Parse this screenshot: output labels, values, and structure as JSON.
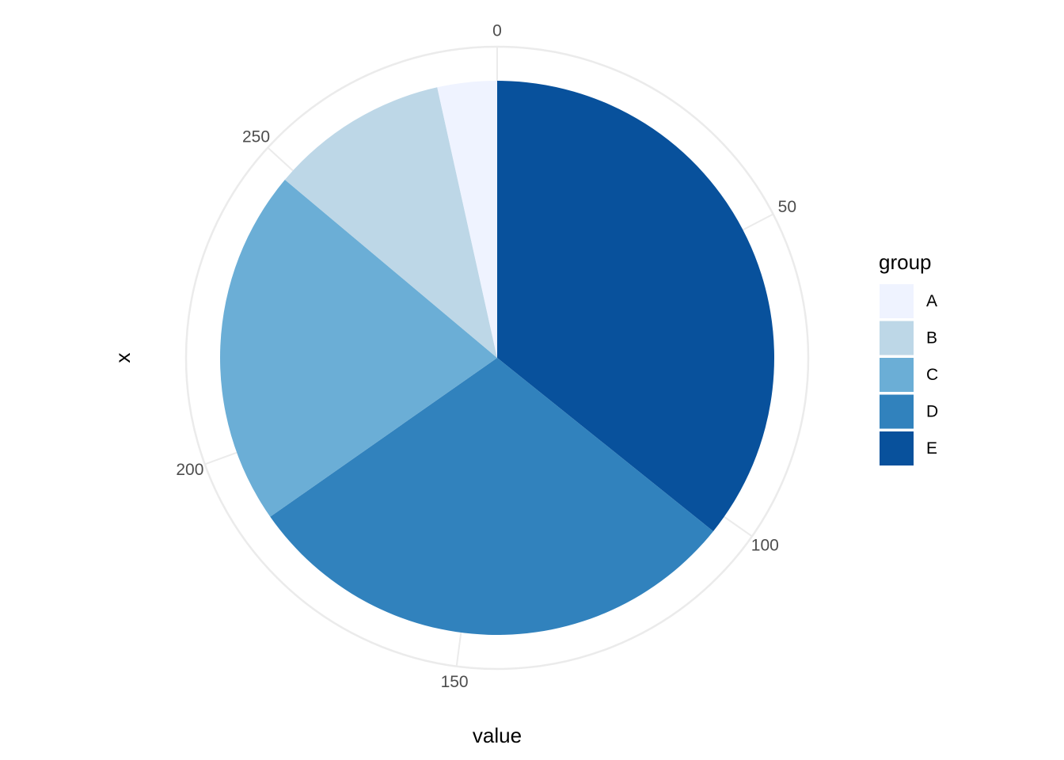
{
  "chart_data": {
    "type": "pie",
    "title": "",
    "xlabel": "value",
    "ylabel": "x",
    "legend_title": "group",
    "legend_position": "right",
    "grid": true,
    "theta_range": [
      0,
      288
    ],
    "theta_ticks": [
      0,
      50,
      100,
      150,
      200,
      250
    ],
    "theta_tick_labels": [
      "0",
      "50",
      "100",
      "150",
      "200",
      "250"
    ],
    "categories": [
      "A",
      "B",
      "C",
      "D",
      "E"
    ],
    "values": [
      10,
      30,
      60,
      85,
      103
    ],
    "colors": [
      "#EFF3FF",
      "#BDD7E7",
      "#6BAED6",
      "#3182BD",
      "#08519C"
    ],
    "slice_order_clockwise_from_top": [
      "E",
      "D",
      "C",
      "B",
      "A"
    ]
  }
}
